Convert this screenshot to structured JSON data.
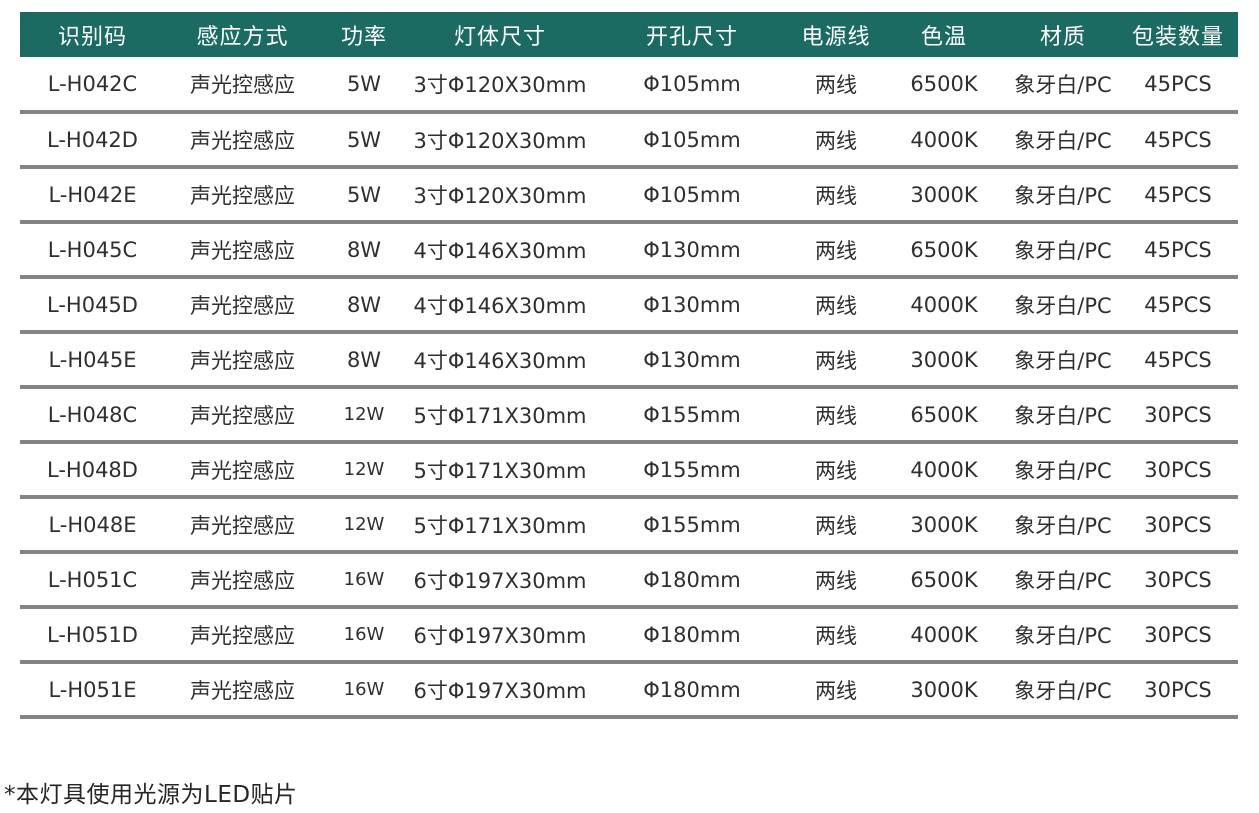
{
  "table": {
    "columns": [
      {
        "key": "id",
        "label": "识别码"
      },
      {
        "key": "sensing",
        "label": "感应方式"
      },
      {
        "key": "power",
        "label": "功率"
      },
      {
        "key": "body-size",
        "label": "灯体尺寸"
      },
      {
        "key": "hole-size",
        "label": "开孔尺寸"
      },
      {
        "key": "power-cord",
        "label": "电源线"
      },
      {
        "key": "color-temp",
        "label": "色温"
      },
      {
        "key": "material",
        "label": "材质"
      },
      {
        "key": "pack-qty",
        "label": "包装数量"
      }
    ],
    "rows": [
      [
        "L-H042C",
        "声光控感应",
        "5W",
        "3寸Φ120X30mm",
        "Φ105mm",
        "两线",
        "6500K",
        "象牙白/PC",
        "45PCS"
      ],
      [
        "L-H042D",
        "声光控感应",
        "5W",
        "3寸Φ120X30mm",
        "Φ105mm",
        "两线",
        "4000K",
        "象牙白/PC",
        "45PCS"
      ],
      [
        "L-H042E",
        "声光控感应",
        "5W",
        "3寸Φ120X30mm",
        "Φ105mm",
        "两线",
        "3000K",
        "象牙白/PC",
        "45PCS"
      ],
      [
        "L-H045C",
        "声光控感应",
        "8W",
        "4寸Φ146X30mm",
        "Φ130mm",
        "两线",
        "6500K",
        "象牙白/PC",
        "45PCS"
      ],
      [
        "L-H045D",
        "声光控感应",
        "8W",
        "4寸Φ146X30mm",
        "Φ130mm",
        "两线",
        "4000K",
        "象牙白/PC",
        "45PCS"
      ],
      [
        "L-H045E",
        "声光控感应",
        "8W",
        "4寸Φ146X30mm",
        "Φ130mm",
        "两线",
        "3000K",
        "象牙白/PC",
        "45PCS"
      ],
      [
        "L-H048C",
        "声光控感应",
        "12W",
        "5寸Φ171X30mm",
        "Φ155mm",
        "两线",
        "6500K",
        "象牙白/PC",
        "30PCS"
      ],
      [
        "L-H048D",
        "声光控感应",
        "12W",
        "5寸Φ171X30mm",
        "Φ155mm",
        "两线",
        "4000K",
        "象牙白/PC",
        "30PCS"
      ],
      [
        "L-H048E",
        "声光控感应",
        "12W",
        "5寸Φ171X30mm",
        "Φ155mm",
        "两线",
        "3000K",
        "象牙白/PC",
        "30PCS"
      ],
      [
        "L-H051C",
        "声光控感应",
        "16W",
        "6寸Φ197X30mm",
        "Φ180mm",
        "两线",
        "6500K",
        "象牙白/PC",
        "30PCS"
      ],
      [
        "L-H051D",
        "声光控感应",
        "16W",
        "6寸Φ197X30mm",
        "Φ180mm",
        "两线",
        "4000K",
        "象牙白/PC",
        "30PCS"
      ],
      [
        "L-H051E",
        "声光控感应",
        "16W",
        "6寸Φ197X30mm",
        "Φ180mm",
        "两线",
        "3000K",
        "象牙白/PC",
        "30PCS"
      ]
    ]
  },
  "footnote": "*本灯具使用光源为LED贴片",
  "colors": {
    "header_bg": "#1c6b62",
    "header_text": "#ffffff",
    "body_text": "#2f2f2f",
    "separator": "#848484",
    "background": "#ffffff"
  }
}
